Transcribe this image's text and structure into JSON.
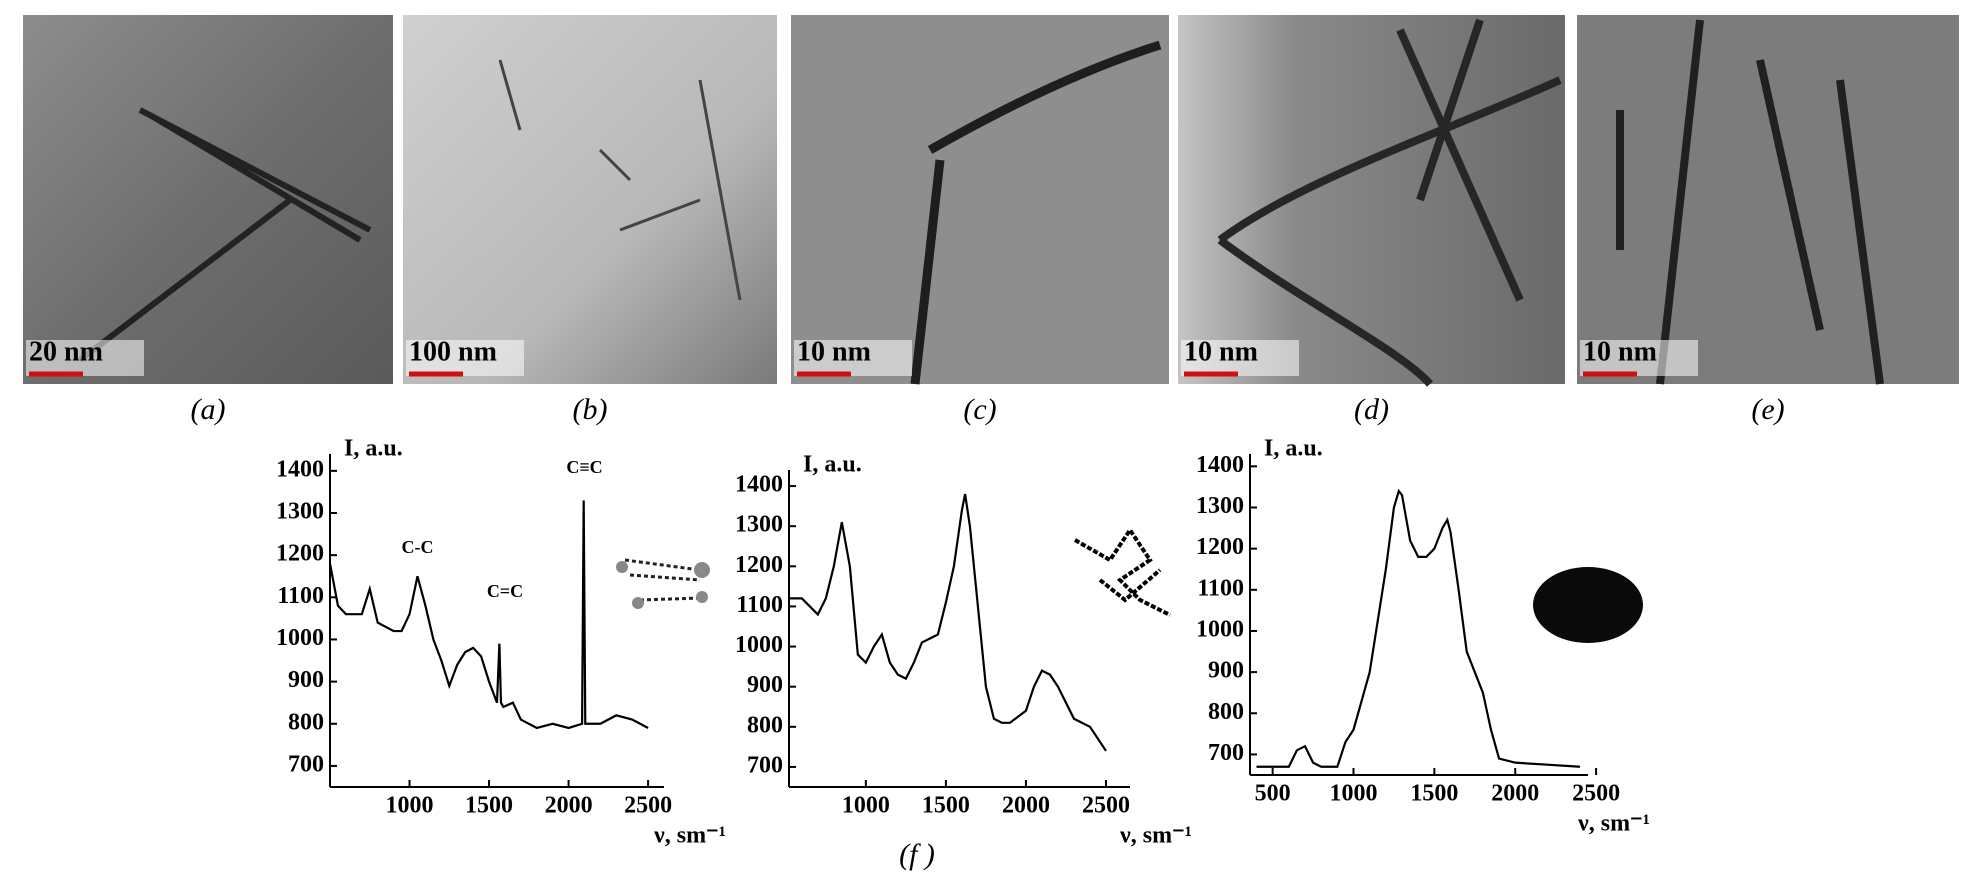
{
  "panels": [
    {
      "label": "(a)",
      "scale": "20 nm"
    },
    {
      "label": "(b)",
      "scale": "100 nm"
    },
    {
      "label": "(c)",
      "scale": "10 nm"
    },
    {
      "label": "(d)",
      "scale": "10 nm"
    },
    {
      "label": "(e)",
      "scale": "10 nm"
    }
  ],
  "figure_label": "(f )",
  "chart_data": [
    {
      "type": "line",
      "y_label": "I, a.u.",
      "x_label": "ν, sm⁻¹",
      "annotations": [
        "C-C",
        "C=C",
        "C≡C"
      ],
      "x": [
        500,
        550,
        600,
        700,
        750,
        800,
        900,
        950,
        1000,
        1050,
        1100,
        1150,
        1200,
        1250,
        1300,
        1350,
        1400,
        1450,
        1500,
        1550,
        1565,
        1575,
        1590,
        1650,
        1700,
        1800,
        1900,
        2000,
        2085,
        2095,
        2105,
        2200,
        2300,
        2400,
        2500
      ],
      "series": [
        {
          "color": "#000000",
          "values": [
            1180,
            1080,
            1060,
            1060,
            1120,
            1040,
            1020,
            1020,
            1060,
            1150,
            1080,
            1000,
            950,
            890,
            940,
            970,
            980,
            960,
            900,
            850,
            990,
            850,
            840,
            850,
            810,
            790,
            800,
            790,
            800,
            1330,
            800,
            800,
            820,
            810,
            790
          ]
        }
      ],
      "xlim": [
        500,
        2600
      ],
      "ylim": [
        650,
        1440
      ],
      "xticks": [
        1000,
        1500,
        2000,
        2500
      ],
      "yticks": [
        700,
        800,
        900,
        1000,
        1100,
        1200,
        1300,
        1400
      ]
    },
    {
      "type": "line",
      "y_label": "I, a.u.",
      "x_label": "ν, sm⁻¹",
      "annotations": [],
      "x": [
        520,
        600,
        700,
        750,
        800,
        850,
        900,
        950,
        1000,
        1050,
        1100,
        1150,
        1200,
        1250,
        1300,
        1350,
        1400,
        1450,
        1500,
        1550,
        1600,
        1620,
        1650,
        1700,
        1750,
        1800,
        1850,
        1900,
        2000,
        2050,
        2100,
        2150,
        2200,
        2300,
        2400,
        2500
      ],
      "series": [
        {
          "color": "#000000",
          "values": [
            1120,
            1120,
            1080,
            1120,
            1200,
            1310,
            1200,
            980,
            960,
            1000,
            1030,
            960,
            930,
            920,
            960,
            1010,
            1020,
            1030,
            1110,
            1200,
            1340,
            1380,
            1300,
            1100,
            900,
            820,
            810,
            810,
            840,
            900,
            940,
            930,
            900,
            820,
            800,
            740
          ]
        }
      ],
      "xlim": [
        520,
        2650
      ],
      "ylim": [
        650,
        1440
      ],
      "xticks": [
        1000,
        1500,
        2000,
        2500
      ],
      "yticks": [
        700,
        800,
        900,
        1000,
        1100,
        1200,
        1300,
        1400
      ]
    },
    {
      "type": "line",
      "y_label": "I, a.u.",
      "x_label": "ν, sm⁻¹",
      "annotations": [],
      "x": [
        400,
        600,
        650,
        700,
        750,
        800,
        900,
        950,
        1000,
        1100,
        1200,
        1250,
        1280,
        1300,
        1350,
        1400,
        1450,
        1500,
        1550,
        1580,
        1600,
        1650,
        1700,
        1800,
        1850,
        1900,
        2000,
        2200,
        2400
      ],
      "series": [
        {
          "color": "#000000",
          "values": [
            670,
            670,
            710,
            720,
            680,
            670,
            670,
            730,
            760,
            900,
            1150,
            1300,
            1340,
            1330,
            1220,
            1180,
            1180,
            1200,
            1250,
            1270,
            1240,
            1100,
            950,
            850,
            760,
            690,
            680,
            675,
            670
          ]
        }
      ],
      "xlim": [
        360,
        2450
      ],
      "ylim": [
        650,
        1430
      ],
      "xticks": [
        500,
        1000,
        1500,
        2000,
        2500
      ],
      "yticks": [
        700,
        800,
        900,
        1000,
        1100,
        1200,
        1300,
        1400
      ]
    }
  ]
}
